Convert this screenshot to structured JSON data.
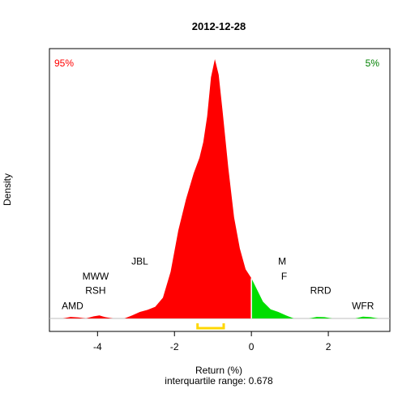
{
  "chart_data": {
    "type": "area",
    "title": "2012-12-28",
    "xlabel": "Return (%)",
    "ylabel": "Density",
    "subtitle": "interquartile range: 0.678",
    "xlim": [
      -5.25,
      3.6
    ],
    "ylim": [
      0,
      1.0
    ],
    "x_ticks": [
      -4,
      -2,
      0,
      2
    ],
    "x_tick_labels": [
      "-4",
      "-2",
      "0",
      "2"
    ],
    "left_tail_label": "95%",
    "right_tail_label": "5%",
    "split_at": 0,
    "colors": {
      "left": "#ff0000",
      "right": "#00dd00",
      "iqr": "#ffd700",
      "title_left": "#ff0000",
      "title_right": "#008000"
    },
    "interquartile_range": {
      "low": -1.4,
      "high": -0.72,
      "value": 0.678
    },
    "density": [
      [
        -4.9,
        0.0
      ],
      [
        -4.7,
        0.006
      ],
      [
        -4.5,
        0.004
      ],
      [
        -4.3,
        0.0
      ],
      [
        -4.1,
        0.008
      ],
      [
        -3.95,
        0.012
      ],
      [
        -3.8,
        0.005
      ],
      [
        -3.6,
        0.0
      ],
      [
        -3.3,
        0.0
      ],
      [
        -3.1,
        0.012
      ],
      [
        -2.9,
        0.025
      ],
      [
        -2.7,
        0.033
      ],
      [
        -2.5,
        0.045
      ],
      [
        -2.3,
        0.08
      ],
      [
        -2.1,
        0.18
      ],
      [
        -1.9,
        0.34
      ],
      [
        -1.7,
        0.46
      ],
      [
        -1.5,
        0.56
      ],
      [
        -1.35,
        0.62
      ],
      [
        -1.25,
        0.68
      ],
      [
        -1.15,
        0.78
      ],
      [
        -1.05,
        0.93
      ],
      [
        -0.95,
        1.0
      ],
      [
        -0.85,
        0.94
      ],
      [
        -0.75,
        0.8
      ],
      [
        -0.6,
        0.58
      ],
      [
        -0.45,
        0.39
      ],
      [
        -0.3,
        0.27
      ],
      [
        -0.15,
        0.19
      ],
      [
        0.0,
        0.155
      ],
      [
        0.15,
        0.11
      ],
      [
        0.3,
        0.065
      ],
      [
        0.5,
        0.035
      ],
      [
        0.7,
        0.025
      ],
      [
        0.9,
        0.012
      ],
      [
        1.1,
        0.0
      ],
      [
        1.5,
        0.0
      ],
      [
        1.7,
        0.006
      ],
      [
        1.9,
        0.005
      ],
      [
        2.1,
        0.0
      ],
      [
        2.7,
        0.0
      ],
      [
        2.9,
        0.007
      ],
      [
        3.1,
        0.005
      ],
      [
        3.3,
        0.0
      ]
    ],
    "annotations": [
      {
        "text": "AMD",
        "x": -4.65,
        "y": 0.049
      },
      {
        "text": "RSH",
        "x": -4.05,
        "y": 0.108
      },
      {
        "text": "MWW",
        "x": -4.05,
        "y": 0.162
      },
      {
        "text": "JBL",
        "x": -2.9,
        "y": 0.221
      },
      {
        "text": "M",
        "x": 0.8,
        "y": 0.221
      },
      {
        "text": "F",
        "x": 0.85,
        "y": 0.162
      },
      {
        "text": "RRD",
        "x": 1.8,
        "y": 0.108
      },
      {
        "text": "WFR",
        "x": 2.9,
        "y": 0.049
      }
    ]
  }
}
